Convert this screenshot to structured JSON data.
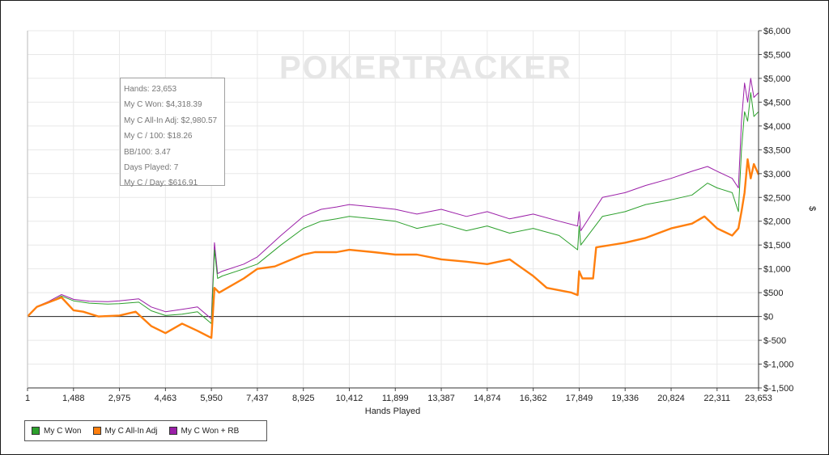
{
  "watermark": "POKERTRACKER",
  "tooltip": {
    "lines": [
      "Hands: 23,653",
      "My C Won: $4,318.39",
      "My C All-In Adj: $2,980.57",
      "My C / 100: $18.26",
      "BB/100: 3.47",
      "Days Played: 7",
      "My C / Day: $616.91"
    ]
  },
  "legend": {
    "items": [
      {
        "label": "My C Won",
        "color": "#2ca02c"
      },
      {
        "label": "My C All-In Adj",
        "color": "#ff7f0e"
      },
      {
        "label": "My C Won + RB",
        "color": "#9b1fa8"
      }
    ]
  },
  "chart_data": {
    "type": "line",
    "title": "",
    "xlabel": "Hands Played",
    "ylabel": "$",
    "xlim": [
      1,
      23653
    ],
    "ylim": [
      -1500,
      6000
    ],
    "grid": true,
    "legend_position": "bottom-left",
    "x_ticks": [
      1,
      1488,
      2975,
      4463,
      5950,
      7437,
      8925,
      10412,
      11899,
      13387,
      14874,
      16362,
      17849,
      19336,
      20824,
      22311,
      23653
    ],
    "x_tick_labels": [
      "1",
      "1,488",
      "2,975",
      "4,463",
      "5,950",
      "7,437",
      "8,925",
      "10,412",
      "11,899",
      "13,387",
      "14,874",
      "16,362",
      "17,849",
      "19,336",
      "20,824",
      "22,311",
      "23,653"
    ],
    "y_ticks": [
      -1500,
      -1000,
      -500,
      0,
      500,
      1000,
      1500,
      2000,
      2500,
      3000,
      3500,
      4000,
      4500,
      5000,
      5500,
      6000
    ],
    "y_tick_labels": [
      "$-1,500",
      "$-1,000",
      "$-500",
      "$0",
      "$500",
      "$1,000",
      "$1,500",
      "$2,000",
      "$2,500",
      "$3,000",
      "$3,500",
      "$4,000",
      "$4,500",
      "$5,000",
      "$5,500",
      "$6,000"
    ],
    "series": [
      {
        "name": "My C Won",
        "color": "#2ca02c",
        "x": [
          1,
          300,
          700,
          1100,
          1488,
          2000,
          2600,
          2975,
          3600,
          4000,
          4463,
          5000,
          5500,
          5950,
          6050,
          6150,
          6300,
          7000,
          7437,
          8200,
          8925,
          9500,
          10000,
          10412,
          11200,
          11899,
          12600,
          13387,
          14200,
          14874,
          15600,
          16362,
          17200,
          17800,
          17849,
          17900,
          18600,
          19336,
          20000,
          20824,
          21500,
          22000,
          22311,
          22800,
          23000,
          23100,
          23200,
          23300,
          23400,
          23500,
          23653
        ],
        "values": [
          0,
          200,
          300,
          430,
          330,
          280,
          260,
          270,
          300,
          120,
          20,
          50,
          100,
          -150,
          1400,
          800,
          850,
          1000,
          1100,
          1500,
          1850,
          2000,
          2050,
          2100,
          2050,
          2000,
          1850,
          1950,
          1800,
          1900,
          1750,
          1850,
          1700,
          1400,
          1900,
          1500,
          2100,
          2200,
          2350,
          2450,
          2550,
          2800,
          2700,
          2600,
          2200,
          3500,
          4300,
          4100,
          4700,
          4200,
          4300
        ]
      },
      {
        "name": "My C All-In Adj",
        "color": "#ff7f0e",
        "x": [
          1,
          300,
          700,
          1100,
          1488,
          1800,
          2300,
          2975,
          3500,
          4000,
          4463,
          5000,
          5500,
          5950,
          6050,
          6200,
          7000,
          7437,
          8000,
          8925,
          9300,
          10000,
          10412,
          11200,
          11899,
          12600,
          13387,
          14200,
          14874,
          15600,
          16362,
          16800,
          17600,
          17800,
          17849,
          17950,
          18300,
          18400,
          19336,
          20000,
          20824,
          21500,
          21900,
          22311,
          22800,
          23000,
          23100,
          23200,
          23300,
          23400,
          23500,
          23653
        ],
        "values": [
          0,
          200,
          300,
          400,
          130,
          100,
          0,
          20,
          100,
          -200,
          -350,
          -150,
          -300,
          -450,
          600,
          500,
          800,
          1000,
          1050,
          1300,
          1350,
          1350,
          1400,
          1350,
          1300,
          1300,
          1200,
          1150,
          1100,
          1200,
          850,
          600,
          500,
          450,
          950,
          800,
          800,
          1450,
          1550,
          1650,
          1850,
          1950,
          2100,
          1850,
          1700,
          1850,
          2200,
          2600,
          3300,
          2900,
          3200,
          2980
        ]
      },
      {
        "name": "My C Won + RB",
        "color": "#9b1fa8",
        "x": [
          1,
          300,
          700,
          1100,
          1488,
          2000,
          2600,
          2975,
          3600,
          4000,
          4463,
          5000,
          5500,
          5950,
          6050,
          6150,
          6300,
          7000,
          7437,
          8200,
          8925,
          9500,
          10000,
          10412,
          11200,
          11899,
          12600,
          13387,
          14200,
          14874,
          15600,
          16362,
          17200,
          17800,
          17849,
          17900,
          18600,
          19336,
          20000,
          20824,
          21500,
          22000,
          22311,
          22800,
          23000,
          23100,
          23200,
          23300,
          23400,
          23500,
          23653
        ],
        "values": [
          0,
          210,
          320,
          460,
          360,
          320,
          310,
          330,
          370,
          200,
          100,
          150,
          200,
          -50,
          1550,
          900,
          950,
          1100,
          1250,
          1700,
          2100,
          2250,
          2300,
          2350,
          2300,
          2250,
          2150,
          2250,
          2100,
          2200,
          2050,
          2150,
          2000,
          1900,
          2200,
          1800,
          2500,
          2600,
          2750,
          2900,
          3050,
          3150,
          3050,
          2900,
          2700,
          4100,
          4900,
          4500,
          5000,
          4600,
          4700
        ]
      }
    ]
  }
}
